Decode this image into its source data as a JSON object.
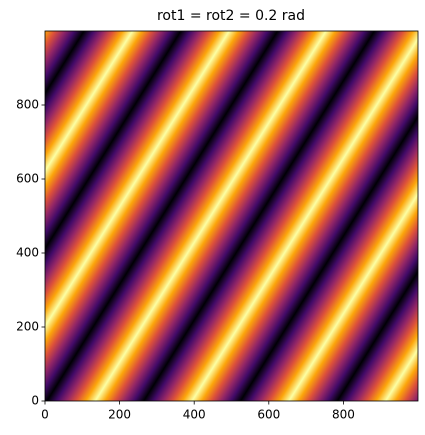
{
  "chart_data": {
    "type": "image",
    "title": "rot1 = rot2 = 0.2 rad",
    "colormap": "inferno",
    "xlim": [
      0,
      1000
    ],
    "ylim": [
      0,
      1000
    ],
    "xticks": [
      0,
      200,
      400,
      600,
      800
    ],
    "yticks": [
      0,
      200,
      400,
      600,
      800
    ]
  }
}
